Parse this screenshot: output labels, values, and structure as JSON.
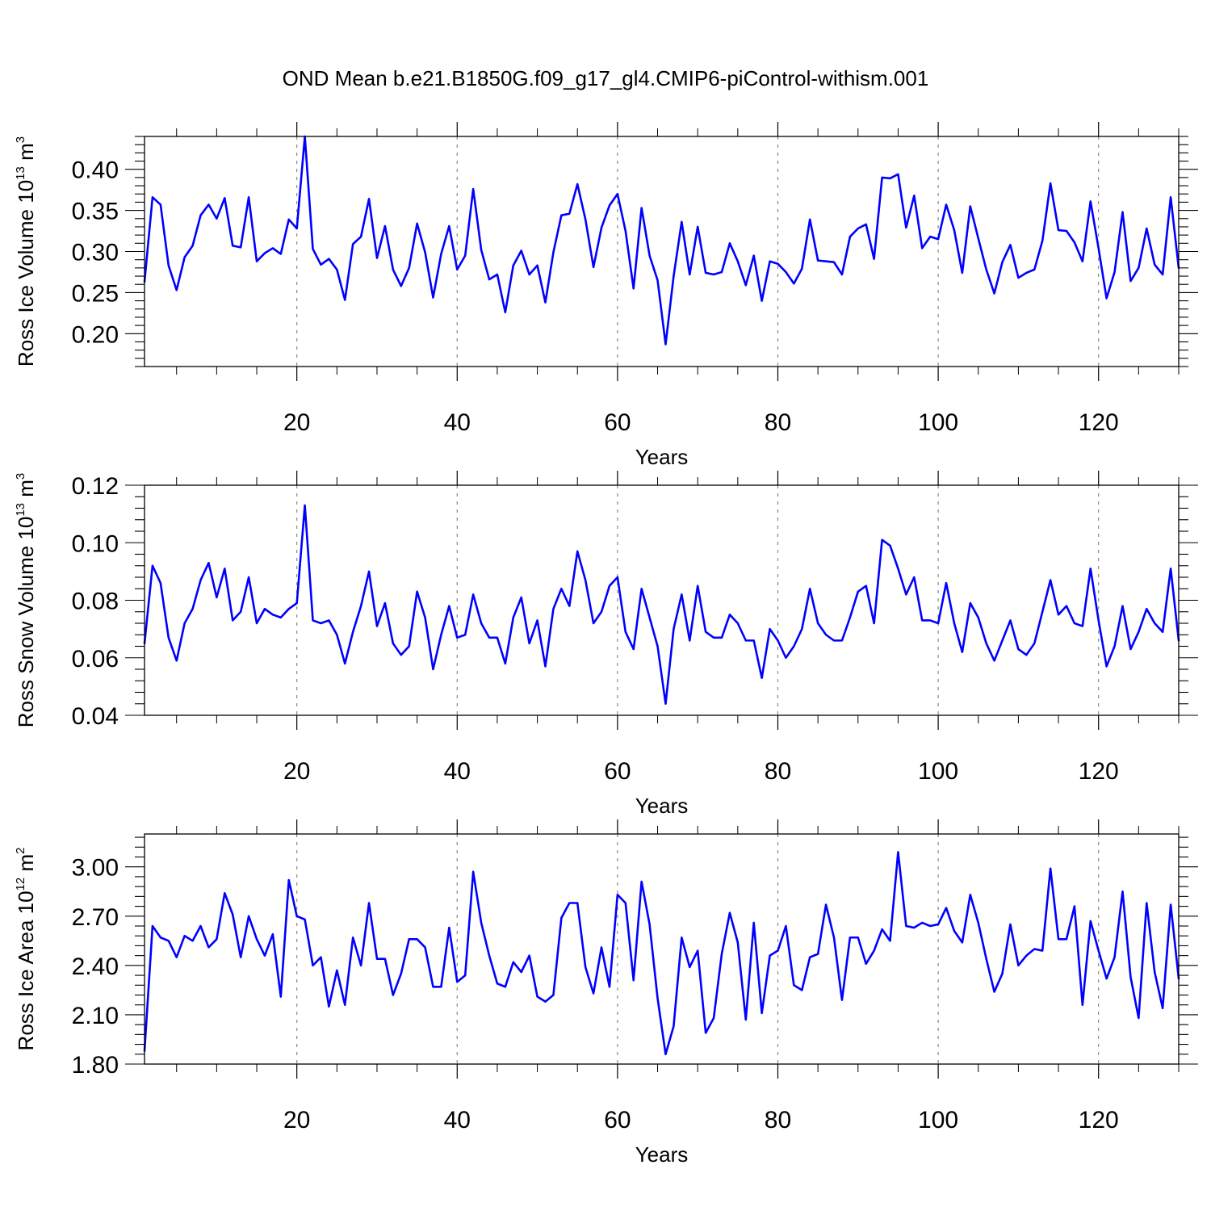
{
  "title": "OND Mean b.e21.B1850G.f09_g17_gl4.CMIP6-piControl-withism.001",
  "line_color": "#0000ff",
  "grid_color": "#888888",
  "chart_data": [
    {
      "type": "line",
      "name": "panel-ice-volume",
      "xlabel": "Years",
      "ylabel_main": "Ross Ice Volume 10",
      "ylabel_sup": "13",
      "ylabel_unit": " m",
      "ylabel_unit_sup": "3",
      "xlim": [
        1,
        130
      ],
      "ylim": [
        0.16,
        0.44
      ],
      "xticks": [
        20,
        40,
        60,
        80,
        100,
        120
      ],
      "xtick_labels": [
        "20",
        "40",
        "60",
        "80",
        "100",
        "120"
      ],
      "yticks": [
        0.2,
        0.25,
        0.3,
        0.35,
        0.4
      ],
      "ytick_labels": [
        "0.20",
        "0.25",
        "0.30",
        "0.35",
        "0.40"
      ],
      "x_start": 1,
      "values": [
        0.263,
        0.366,
        0.357,
        0.283,
        0.253,
        0.293,
        0.307,
        0.344,
        0.357,
        0.34,
        0.365,
        0.307,
        0.305,
        0.366,
        0.288,
        0.298,
        0.304,
        0.297,
        0.339,
        0.328,
        0.44,
        0.303,
        0.284,
        0.291,
        0.278,
        0.241,
        0.309,
        0.318,
        0.364,
        0.292,
        0.331,
        0.278,
        0.258,
        0.28,
        0.334,
        0.299,
        0.244,
        0.297,
        0.331,
        0.278,
        0.295,
        0.376,
        0.302,
        0.266,
        0.272,
        0.226,
        0.283,
        0.301,
        0.272,
        0.283,
        0.238,
        0.299,
        0.344,
        0.346,
        0.382,
        0.339,
        0.281,
        0.329,
        0.356,
        0.37,
        0.325,
        0.255,
        0.353,
        0.295,
        0.265,
        0.187,
        0.27,
        0.336,
        0.272,
        0.33,
        0.274,
        0.272,
        0.275,
        0.31,
        0.288,
        0.259,
        0.295,
        0.24,
        0.288,
        0.285,
        0.275,
        0.261,
        0.279,
        0.339,
        0.289,
        0.288,
        0.287,
        0.272,
        0.318,
        0.328,
        0.333,
        0.291,
        0.39,
        0.389,
        0.394,
        0.329,
        0.368,
        0.304,
        0.318,
        0.315,
        0.357,
        0.326,
        0.274,
        0.355,
        0.316,
        0.278,
        0.249,
        0.287,
        0.308,
        0.268,
        0.274,
        0.278,
        0.313,
        0.383,
        0.326,
        0.325,
        0.311,
        0.288,
        0.361,
        0.304,
        0.243,
        0.275,
        0.348,
        0.264,
        0.28,
        0.328,
        0.284,
        0.272,
        0.366,
        0.28
      ]
    },
    {
      "type": "line",
      "name": "panel-snow-volume",
      "xlabel": "Years",
      "ylabel_main": "Ross Snow Volume 10",
      "ylabel_sup": "13",
      "ylabel_unit": " m",
      "ylabel_unit_sup": "3",
      "xlim": [
        1,
        130
      ],
      "ylim": [
        0.04,
        0.12
      ],
      "xticks": [
        20,
        40,
        60,
        80,
        100,
        120
      ],
      "xtick_labels": [
        "20",
        "40",
        "60",
        "80",
        "100",
        "120"
      ],
      "yticks": [
        0.04,
        0.06,
        0.08,
        0.1,
        0.12
      ],
      "ytick_labels": [
        "0.04",
        "0.06",
        "0.08",
        "0.10",
        "0.12"
      ],
      "x_start": 1,
      "values": [
        0.065,
        0.092,
        0.086,
        0.067,
        0.059,
        0.072,
        0.077,
        0.087,
        0.093,
        0.081,
        0.091,
        0.073,
        0.076,
        0.088,
        0.072,
        0.077,
        0.075,
        0.074,
        0.077,
        0.079,
        0.113,
        0.073,
        0.072,
        0.073,
        0.068,
        0.058,
        0.069,
        0.078,
        0.09,
        0.071,
        0.079,
        0.065,
        0.061,
        0.064,
        0.083,
        0.074,
        0.056,
        0.068,
        0.078,
        0.067,
        0.068,
        0.082,
        0.072,
        0.067,
        0.067,
        0.058,
        0.074,
        0.081,
        0.065,
        0.073,
        0.057,
        0.077,
        0.084,
        0.078,
        0.097,
        0.087,
        0.072,
        0.076,
        0.085,
        0.088,
        0.069,
        0.063,
        0.084,
        0.074,
        0.064,
        0.044,
        0.07,
        0.082,
        0.066,
        0.085,
        0.069,
        0.067,
        0.067,
        0.075,
        0.072,
        0.066,
        0.066,
        0.053,
        0.07,
        0.066,
        0.06,
        0.064,
        0.07,
        0.084,
        0.072,
        0.068,
        0.066,
        0.066,
        0.074,
        0.083,
        0.085,
        0.072,
        0.101,
        0.099,
        0.091,
        0.082,
        0.088,
        0.073,
        0.073,
        0.072,
        0.086,
        0.072,
        0.062,
        0.079,
        0.074,
        0.065,
        0.059,
        0.066,
        0.073,
        0.063,
        0.061,
        0.065,
        0.076,
        0.087,
        0.075,
        0.078,
        0.072,
        0.071,
        0.091,
        0.073,
        0.057,
        0.064,
        0.078,
        0.063,
        0.069,
        0.077,
        0.072,
        0.069,
        0.091,
        0.066
      ]
    },
    {
      "type": "line",
      "name": "panel-ice-area",
      "xlabel": "Years",
      "ylabel_main": "Ross Ice Area 10",
      "ylabel_sup": "12",
      "ylabel_unit": " m",
      "ylabel_unit_sup": "2",
      "xlim": [
        1,
        130
      ],
      "ylim": [
        1.8,
        3.2
      ],
      "xticks": [
        20,
        40,
        60,
        80,
        100,
        120
      ],
      "xtick_labels": [
        "20",
        "40",
        "60",
        "80",
        "100",
        "120"
      ],
      "yticks": [
        1.8,
        2.1,
        2.4,
        2.7,
        3.0
      ],
      "ytick_labels": [
        "1.80",
        "2.10",
        "2.40",
        "2.70",
        "3.00"
      ],
      "x_start": 1,
      "values": [
        1.88,
        2.64,
        2.57,
        2.55,
        2.45,
        2.58,
        2.55,
        2.64,
        2.51,
        2.56,
        2.84,
        2.71,
        2.45,
        2.7,
        2.56,
        2.46,
        2.59,
        2.21,
        2.92,
        2.7,
        2.68,
        2.4,
        2.45,
        2.15,
        2.37,
        2.16,
        2.57,
        2.4,
        2.78,
        2.44,
        2.44,
        2.22,
        2.35,
        2.56,
        2.56,
        2.51,
        2.27,
        2.27,
        2.63,
        2.3,
        2.34,
        2.97,
        2.66,
        2.46,
        2.29,
        2.27,
        2.42,
        2.36,
        2.46,
        2.21,
        2.18,
        2.22,
        2.69,
        2.78,
        2.78,
        2.39,
        2.23,
        2.51,
        2.27,
        2.83,
        2.78,
        2.31,
        2.91,
        2.65,
        2.2,
        1.86,
        2.03,
        2.57,
        2.39,
        2.49,
        1.99,
        2.08,
        2.47,
        2.72,
        2.54,
        2.07,
        2.66,
        2.11,
        2.46,
        2.49,
        2.64,
        2.28,
        2.25,
        2.45,
        2.47,
        2.77,
        2.57,
        2.19,
        2.57,
        2.57,
        2.41,
        2.49,
        2.62,
        2.55,
        3.09,
        2.64,
        2.63,
        2.66,
        2.64,
        2.65,
        2.75,
        2.61,
        2.54,
        2.83,
        2.66,
        2.44,
        2.24,
        2.35,
        2.65,
        2.4,
        2.46,
        2.5,
        2.49,
        2.99,
        2.56,
        2.56,
        2.76,
        2.16,
        2.67,
        2.49,
        2.32,
        2.45,
        2.85,
        2.33,
        2.08,
        2.78,
        2.36,
        2.14,
        2.77,
        2.32
      ]
    }
  ]
}
